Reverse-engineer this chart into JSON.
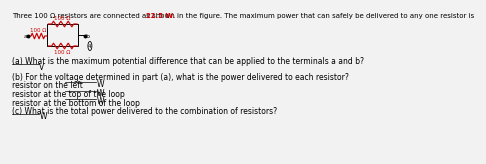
{
  "title_plain": "Three 100 Ω resistors are connected as shown in the figure. The maximum power that can safely be delivered to any one resistor is ",
  "title_highlight": "22.5 W.",
  "highlight_color": "#cc0000",
  "text_color": "#000000",
  "bg_color": "#f2f2f2",
  "resistor_color": "#cc0000",
  "wire_color": "#000000",
  "left_res_label": "100 Ω",
  "top_res_label": "100 Ω",
  "bot_res_label": "100 Ω",
  "node_a": "a",
  "node_b": "b",
  "q_a": "(a) What is the maximum potential difference that can be applied to the terminals a and b?",
  "q_a_unit": "V",
  "q_b": "(b) For the voltage determined in part (a), what is the power delivered to each resistor?",
  "q_b1": "resistor on the left",
  "q_b1_unit": "W",
  "q_b2": "resistor at the top of the loop",
  "q_b2_unit": "W",
  "q_b3": "resistor at the bottom of the loop",
  "q_b3_unit": "W",
  "q_c": "(c) What is the total power delivered to the combination of resistors?",
  "q_c_unit": "W",
  "title_fs": 5.0,
  "body_fs": 5.5
}
